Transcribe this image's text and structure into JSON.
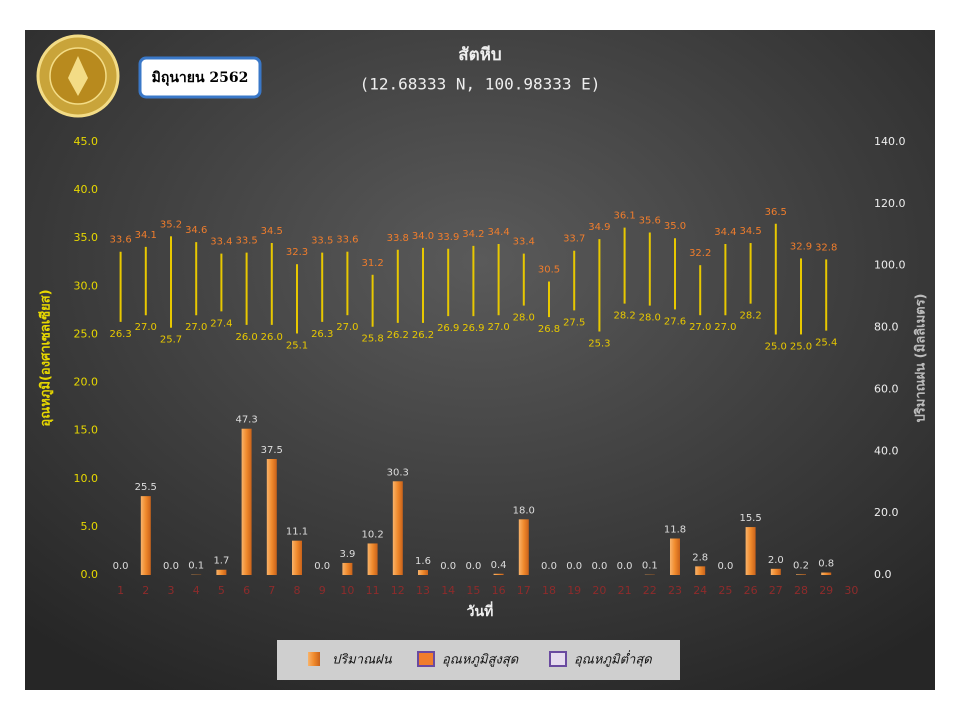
{
  "chart_data": {
    "type": "bar",
    "title": "สัตหีบ",
    "subtitle": "(12.68333 N, 100.98333 E)",
    "period": "มิถุนายน 2562",
    "x_label": "วันที่",
    "y_label": "อุณหภูมิ(องศาเซลเซียส)",
    "y2_label": "ปริมาณฝน (มิลลิเมตร)",
    "legend": "bottom",
    "categories": [
      "1",
      "2",
      "3",
      "4",
      "5",
      "6",
      "7",
      "8",
      "9",
      "10",
      "11",
      "12",
      "13",
      "14",
      "15",
      "16",
      "17",
      "18",
      "19",
      "20",
      "21",
      "22",
      "23",
      "24",
      "25",
      "26",
      "27",
      "28",
      "29",
      "30"
    ],
    "ylim": [
      0,
      45
    ],
    "yticks": [
      {
        "value": 0,
        "label": "0.0"
      },
      {
        "value": 5,
        "label": "5.0"
      },
      {
        "value": 10,
        "label": "10.0"
      },
      {
        "value": 15,
        "label": "15.0"
      },
      {
        "value": 20,
        "label": "20.0"
      },
      {
        "value": 25,
        "label": "25.0"
      },
      {
        "value": 30,
        "label": "30.0"
      },
      {
        "value": 35,
        "label": "35.0"
      },
      {
        "value": 40,
        "label": "40.0"
      },
      {
        "value": 45,
        "label": "45.0"
      }
    ],
    "y2lim": [
      0,
      140
    ],
    "y2ticks": [
      {
        "value": 0,
        "label": "0.0"
      },
      {
        "value": 20,
        "label": "20.0"
      },
      {
        "value": 40,
        "label": "40.0"
      },
      {
        "value": 60,
        "label": "60.0"
      },
      {
        "value": 80,
        "label": "80.0"
      },
      {
        "value": 100,
        "label": "100.0"
      },
      {
        "value": 120,
        "label": "120.0"
      },
      {
        "value": 140,
        "label": "140.0"
      }
    ],
    "series": [
      {
        "name": "ปริมาณฝน",
        "type": "bar",
        "axis": "y2",
        "color": "#f08a2c",
        "values": [
          0,
          25.5,
          0,
          0.1,
          1.7,
          47.3,
          37.5,
          11.1,
          0,
          3.9,
          10.2,
          30.3,
          1.6,
          0,
          0,
          0.4,
          18,
          0,
          0,
          0,
          0,
          0.1,
          11.8,
          2.8,
          0,
          15.5,
          2,
          0.2,
          0.8,
          null
        ],
        "value_labels": [
          "0.0",
          "25.5",
          "0.0",
          "0.1",
          "1.7",
          "47.3",
          "37.5",
          "11.1",
          "0.0",
          "3.9",
          "10.2",
          "30.3",
          "1.6",
          "0.0",
          "0.0",
          "0.4",
          "18.0",
          "0.0",
          "0.0",
          "0.0",
          "0.0",
          "0.1",
          "11.8",
          "2.8",
          "0.0",
          "15.5",
          "2.0",
          "0.2",
          "0.8",
          null
        ]
      },
      {
        "name": "อุณหภูมิสูงสุด",
        "type": "high",
        "color": "#f07d2c",
        "values": [
          33.6,
          34.1,
          35.2,
          34.6,
          33.4,
          33.5,
          34.5,
          32.3,
          33.5,
          33.6,
          31.2,
          33.8,
          34,
          33.9,
          34.2,
          34.4,
          33.4,
          30.5,
          33.7,
          34.9,
          36.1,
          35.6,
          35,
          32.2,
          34.4,
          34.5,
          36.5,
          32.9,
          32.8,
          null
        ],
        "value_labels": [
          "33.6",
          "34.1",
          "35.2",
          "34.6",
          "33.4",
          "33.5",
          "34.5",
          "32.3",
          "33.5",
          "33.6",
          "31.2",
          "33.8",
          "34.0",
          "33.9",
          "34.2",
          "34.4",
          "33.4",
          "30.5",
          "33.7",
          "34.9",
          "36.1",
          "35.6",
          "35.0",
          "32.2",
          "34.4",
          "34.5",
          "36.5",
          "32.9",
          "32.8",
          null
        ]
      },
      {
        "name": "อุณหภูมิต่ำสุด",
        "type": "low",
        "color": "#e8c800",
        "values": [
          26.3,
          27,
          25.7,
          27,
          27.4,
          26,
          26,
          25.1,
          26.3,
          27,
          25.8,
          26.2,
          26.2,
          26.9,
          26.9,
          27,
          28,
          26.8,
          27.5,
          25.3,
          28.2,
          28,
          27.6,
          27,
          27,
          28.2,
          25,
          25,
          25.4,
          null
        ],
        "value_labels": [
          "26.3",
          "27.0",
          "25.7",
          "27.0",
          "27.4",
          "26.0",
          "26.0",
          "25.1",
          "26.3",
          "27.0",
          "25.8",
          "26.2",
          "26.2",
          "26.9",
          "26.9",
          "27.0",
          "28.0",
          "26.8",
          "27.5",
          "25.3",
          "28.2",
          "28.0",
          "27.6",
          "27.0",
          "27.0",
          "28.2",
          "25.0",
          "25.0",
          "25.4",
          null
        ]
      }
    ]
  }
}
